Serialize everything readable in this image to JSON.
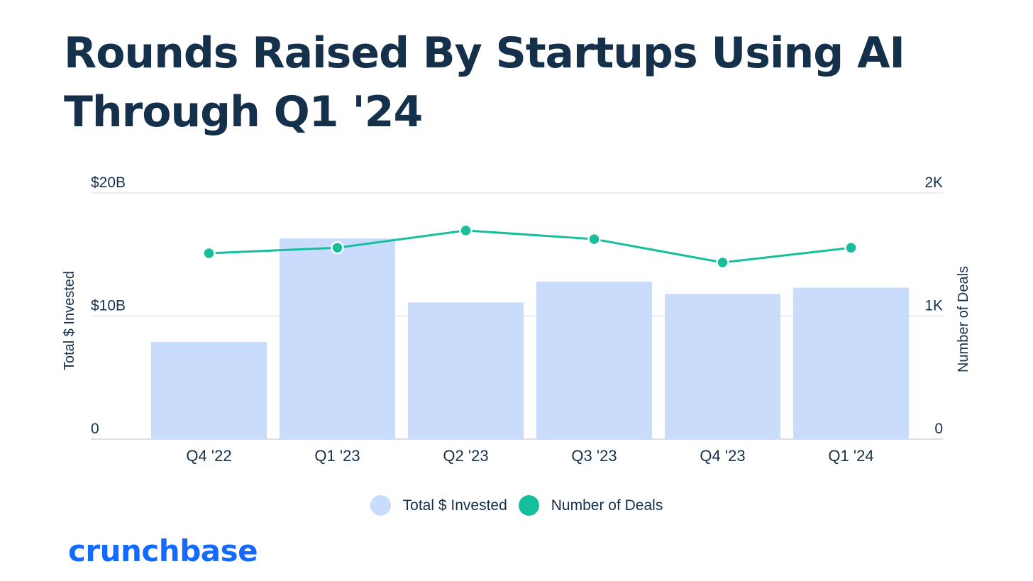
{
  "title": "Rounds Raised By Startups Using AI Through Q1 '24",
  "brand": "crunchbase",
  "colors": {
    "title": "#14304a",
    "bar": "#cadcfc",
    "line": "#15bf9c",
    "grid": "#e3e6ea",
    "brand": "#146aff"
  },
  "legend": {
    "invested": "Total $ Invested",
    "deals": "Number of Deals"
  },
  "chart_data": {
    "type": "bar+line",
    "categories": [
      "Q4 '22",
      "Q1 '23",
      "Q2 '23",
      "Q3 '23",
      "Q4 '23",
      "Q1 '24"
    ],
    "series": [
      {
        "name": "Total $ Invested",
        "type": "bar",
        "axis": "left",
        "unit": "B USD",
        "values": [
          7.9,
          16.3,
          11.1,
          12.8,
          11.8,
          12.3
        ]
      },
      {
        "name": "Number of Deals",
        "type": "line",
        "axis": "right",
        "values": [
          1510,
          1555,
          1695,
          1625,
          1435,
          1555
        ]
      }
    ],
    "left_axis": {
      "label": "Total $ Invested",
      "range": [
        0,
        20
      ],
      "ticks": [
        0,
        10,
        20
      ],
      "tick_labels": [
        "0",
        "$10B",
        "$20B"
      ]
    },
    "right_axis": {
      "label": "Number of Deals",
      "range": [
        0,
        2000
      ],
      "ticks": [
        0,
        1000,
        2000
      ],
      "tick_labels": [
        "0",
        "1K",
        "2K"
      ]
    },
    "grid": true,
    "legend_position": "bottom-center"
  }
}
